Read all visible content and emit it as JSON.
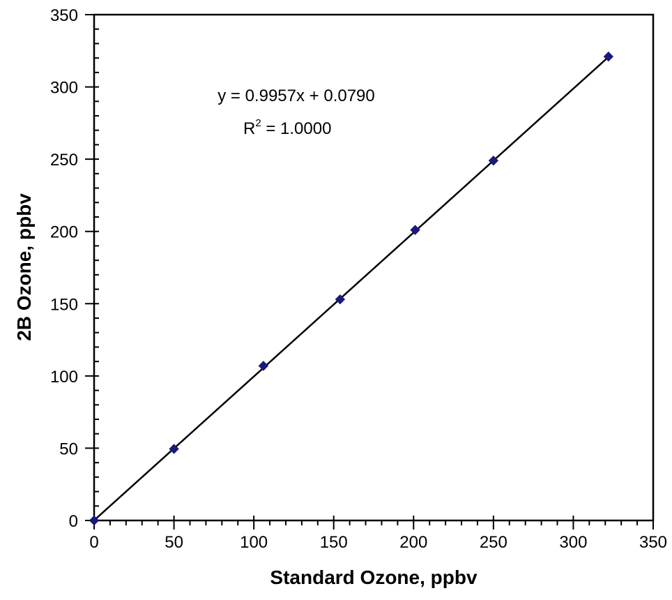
{
  "chart_data": {
    "type": "scatter",
    "xlabel": "Standard Ozone, ppbv",
    "ylabel": "2B Ozone, ppbv",
    "xlim": [
      0,
      350
    ],
    "ylim": [
      0,
      350
    ],
    "major_ticks": [
      0,
      50,
      100,
      150,
      200,
      250,
      300,
      350
    ],
    "minor_tick_step": 10,
    "grid": false,
    "legend": "none",
    "marker": "diamond",
    "marker_color": "#1a1a7a",
    "line_color": "#000000",
    "series": [
      {
        "x": [
          0,
          50,
          106,
          154,
          201,
          250,
          322
        ],
        "y": [
          0,
          49.5,
          107,
          153,
          201,
          249,
          321
        ]
      }
    ],
    "trendline": {
      "slope": 0.9957,
      "intercept": 0.079,
      "x_range": [
        0,
        322
      ]
    },
    "annotations": {
      "equation": "y = 0.9957x + 0.0790",
      "r2_prefix": "R",
      "r2_exponent": "2",
      "r2_value": " = 1.0000"
    }
  }
}
